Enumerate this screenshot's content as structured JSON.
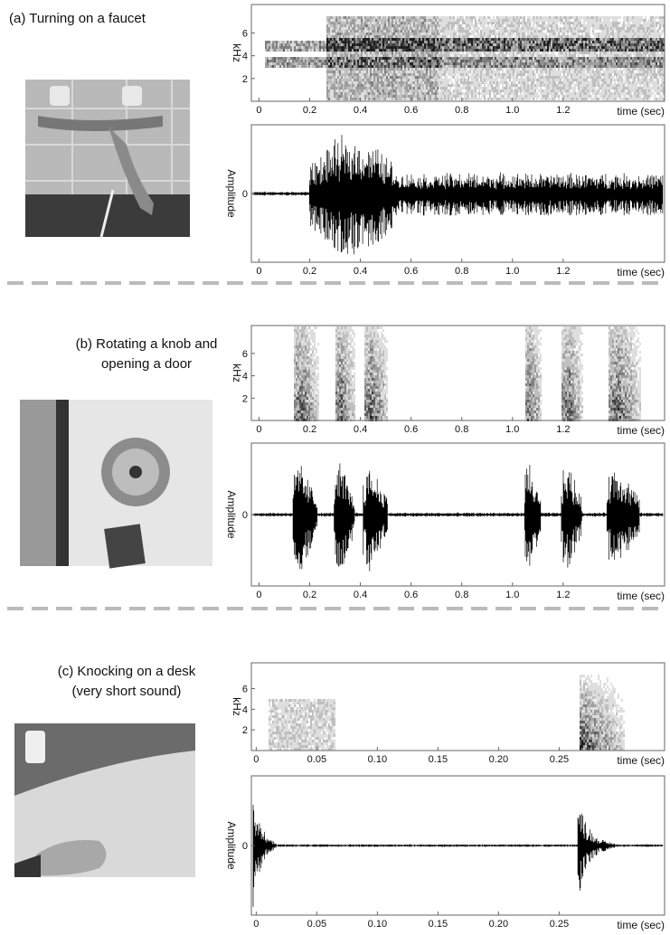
{
  "panels": [
    {
      "title": [
        "(a) Turning on a faucet"
      ],
      "spectrogram": {
        "y_label": "kHz",
        "x_label": "time (sec)",
        "xlim": [
          -0.03,
          1.6
        ],
        "xticks": [
          0,
          0.2,
          0.4,
          0.6,
          0.8,
          {
            "value": 1,
            "label": "1.0"
          },
          1.2
        ],
        "ylim": [
          0,
          8.5
        ],
        "yticks": [
          2,
          4,
          6
        ]
      },
      "waveform": {
        "y_label": "Amplitude",
        "x_label": "time (sec)",
        "xlim": [
          -0.03,
          1.6
        ],
        "xticks": [
          0,
          0.2,
          0.4,
          0.6,
          0.8,
          {
            "value": 1,
            "label": "1.0"
          },
          1.2
        ],
        "ylim": [
          -1,
          1
        ],
        "yticks": [
          0
        ]
      }
    },
    {
      "title": [
        "(b) Rotating a knob and",
        "opening a door"
      ],
      "spectrogram": {
        "y_label": "kHz",
        "x_label": "time (sec)",
        "xlim": [
          -0.03,
          1.6
        ],
        "xticks": [
          0,
          0.2,
          0.4,
          0.6,
          0.8,
          {
            "value": 1,
            "label": "1.0"
          },
          1.2
        ],
        "ylim": [
          0,
          8.5
        ],
        "yticks": [
          2,
          4,
          6
        ]
      },
      "waveform": {
        "y_label": "Amplitude",
        "x_label": "time (sec)",
        "xlim": [
          -0.03,
          1.6
        ],
        "xticks": [
          0,
          0.2,
          0.4,
          0.6,
          0.8,
          {
            "value": 1,
            "label": "1.0"
          },
          1.2
        ],
        "ylim": [
          -1,
          1
        ],
        "yticks": [
          0
        ]
      }
    },
    {
      "title": [
        "(c) Knocking on a desk",
        "(very short sound)"
      ],
      "spectrogram": {
        "y_label": "kHz",
        "x_label": "time (sec)",
        "xlim": [
          -0.004,
          0.337
        ],
        "xticks": [
          0,
          0.05,
          {
            "value": 0.1,
            "label": "0.10"
          },
          0.15,
          {
            "value": 0.2,
            "label": "0.20"
          },
          0.25
        ],
        "ylim": [
          0,
          8.5
        ],
        "yticks": [
          2,
          4,
          6
        ]
      },
      "waveform": {
        "y_label": "Amplitude",
        "x_label": "time (sec)",
        "xlim": [
          -0.004,
          0.337
        ],
        "xticks": [
          0,
          0.05,
          {
            "value": 0.1,
            "label": "0.10"
          },
          0.15,
          {
            "value": 0.2,
            "label": "0.20"
          },
          0.25
        ],
        "ylim": [
          -1,
          1
        ],
        "yticks": [
          0
        ]
      }
    }
  ]
}
